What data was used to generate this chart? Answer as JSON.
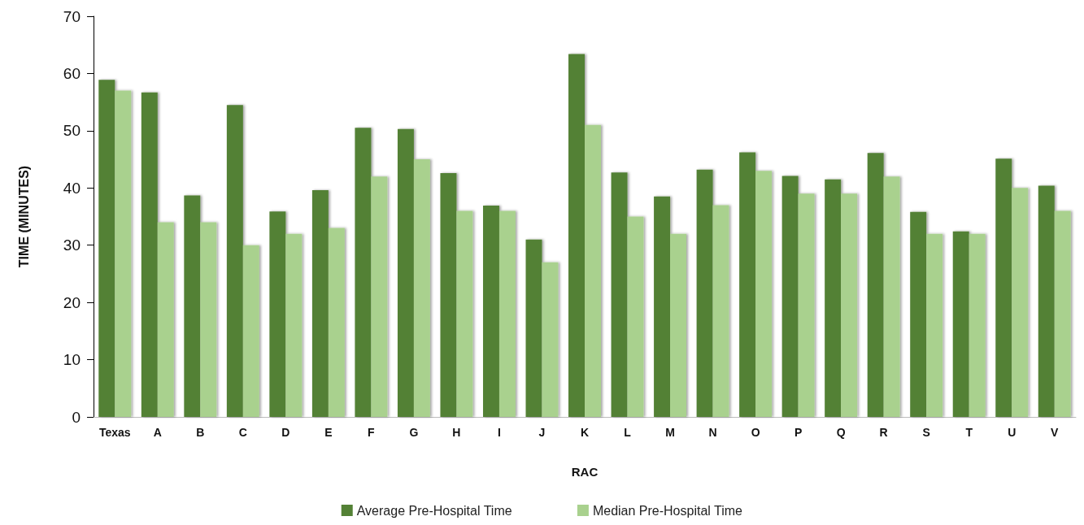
{
  "chart_data": {
    "type": "bar",
    "xlabel": "RAC",
    "ylabel": "TIME (MINUTES)",
    "categories": [
      "Texas",
      "A",
      "B",
      "C",
      "D",
      "E",
      "F",
      "G",
      "H",
      "I",
      "J",
      "K",
      "L",
      "M",
      "N",
      "O",
      "P",
      "Q",
      "R",
      "S",
      "T",
      "U",
      "V"
    ],
    "series": [
      {
        "name": "Average Pre-Hospital Time",
        "color": "#538135",
        "values": [
          58.9,
          56.7,
          38.7,
          54.5,
          35.9,
          39.6,
          50.5,
          50.3,
          42.6,
          36.9,
          31,
          63.4,
          42.7,
          38.5,
          43.2,
          46.2,
          42.1,
          41.5,
          46.1,
          35.8,
          32.4,
          45.1,
          40.4
        ]
      },
      {
        "name": "Median Pre-Hospital Time",
        "color": "#a9d18e",
        "values": [
          57,
          34,
          34,
          30,
          32,
          33,
          42,
          45,
          36,
          36,
          27,
          51,
          35,
          32,
          37,
          43,
          39,
          39,
          42,
          32,
          32,
          40,
          36
        ]
      }
    ],
    "ylim": [
      0,
      70
    ],
    "yticks": [
      0,
      10,
      20,
      30,
      40,
      50,
      60,
      70
    ],
    "grid": false,
    "legend": "bottom"
  }
}
